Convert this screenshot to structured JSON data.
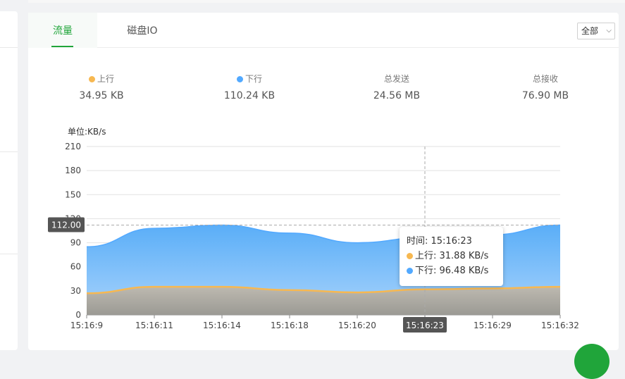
{
  "tabs": [
    {
      "label": "流量",
      "active": true
    },
    {
      "label": "磁盘IO",
      "active": false
    }
  ],
  "select": {
    "value": "全部"
  },
  "stats": [
    {
      "label": "上行",
      "value": "34.95 KB",
      "dot_color": "#f7b851"
    },
    {
      "label": "下行",
      "value": "110.24 KB",
      "dot_color": "#52a9ff"
    },
    {
      "label": "总发送",
      "value": "24.56 MB"
    },
    {
      "label": "总接收",
      "value": "76.90 MB"
    }
  ],
  "chart_data": {
    "type": "area",
    "ylabel": "单位:KB/s",
    "ylim": [
      0,
      210
    ],
    "yticks": [
      0,
      30,
      60,
      90,
      120,
      150,
      180,
      210
    ],
    "x": [
      "15:16:9",
      "15:16:11",
      "15:16:14",
      "15:16:18",
      "15:16:20",
      "15:16:23",
      "15:16:29",
      "15:16:32"
    ],
    "series": [
      {
        "name": "上行",
        "color": "#f7b851",
        "values": [
          27,
          35,
          35,
          31,
          28,
          31.88,
          33,
          35
        ]
      },
      {
        "name": "下行",
        "color": "#52a9ff",
        "values": [
          85,
          108,
          112,
          102,
          90,
          96.48,
          100,
          112
        ]
      }
    ],
    "crosshair": {
      "x": "15:16:23",
      "y_label": "112.00"
    },
    "grid": true
  },
  "tooltip": {
    "time_label": "时间: 15:16:23",
    "up_label": "上行: 31.88 KB/s",
    "down_label": "下行: 96.48 KB/s"
  }
}
